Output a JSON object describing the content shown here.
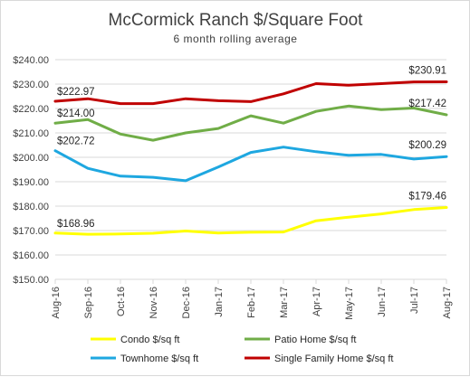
{
  "chart_data": {
    "type": "line",
    "title": "McCormick Ranch $/Square Foot",
    "subtitle": "6 month rolling average",
    "xlabel": "",
    "ylabel": "",
    "categories": [
      "Aug-16",
      "Sep-16",
      "Oct-16",
      "Nov-16",
      "Dec-16",
      "Jan-17",
      "Feb-17",
      "Mar-17",
      "Apr-17",
      "May-17",
      "Jun-17",
      "Jul-17",
      "Aug-17"
    ],
    "ylim": [
      150,
      240
    ],
    "yticks": [
      150,
      160,
      170,
      180,
      190,
      200,
      210,
      220,
      230,
      240
    ],
    "ytick_labels": [
      "$150.00",
      "$160.00",
      "$170.00",
      "$180.00",
      "$190.00",
      "$200.00",
      "$210.00",
      "$220.00",
      "$230.00",
      "$240.00"
    ],
    "grid": true,
    "legend_position": "bottom",
    "series": [
      {
        "name": "Condo $/sq ft",
        "color": "#ffff00",
        "values": [
          168.96,
          168.5,
          168.6,
          168.9,
          169.8,
          169.0,
          169.3,
          169.4,
          174.0,
          175.5,
          176.8,
          178.6,
          179.46
        ],
        "start_label": "$168.96",
        "end_label": "$179.46"
      },
      {
        "name": "Patio Home $/sq ft",
        "color": "#70ad47",
        "values": [
          214.0,
          215.5,
          209.5,
          207.0,
          210.0,
          211.8,
          217.0,
          214.0,
          218.8,
          221.0,
          219.5,
          220.2,
          217.42
        ],
        "start_label": "$214.00",
        "end_label": "$217.42"
      },
      {
        "name": "Townhome $/sq ft",
        "color": "#1ea7e0",
        "values": [
          202.72,
          195.5,
          192.3,
          191.8,
          190.4,
          196.0,
          202.0,
          204.2,
          202.3,
          200.8,
          201.2,
          199.3,
          200.29
        ],
        "start_label": "$202.72",
        "end_label": "$200.29"
      },
      {
        "name": "Single Family Home $/sq ft",
        "color": "#c00000",
        "values": [
          222.97,
          224.0,
          222.0,
          222.0,
          224.0,
          223.2,
          222.8,
          226.0,
          230.2,
          229.5,
          230.2,
          230.9,
          230.91
        ],
        "start_label": "$222.97",
        "end_label": "$230.91"
      }
    ]
  }
}
